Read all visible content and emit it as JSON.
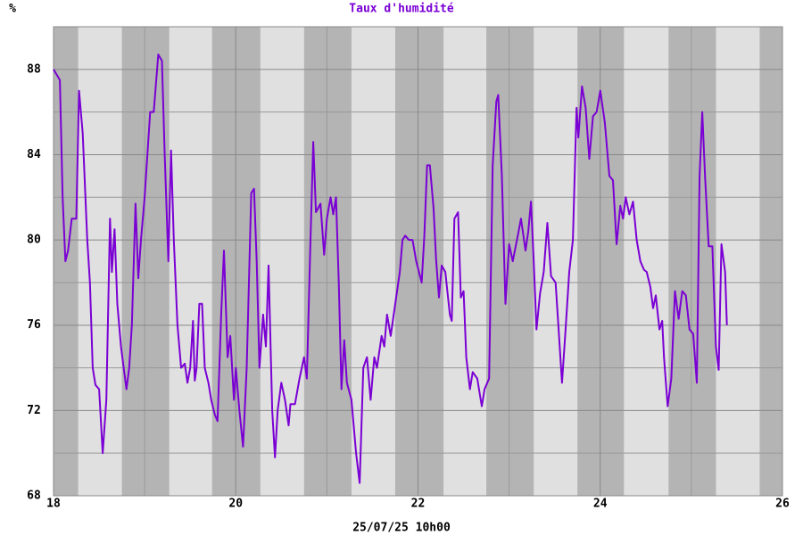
{
  "chart_data": {
    "type": "line",
    "title": "Taux d'humidité",
    "y_label": "%",
    "x_label": "25/07/25 10h00",
    "color": "#7a00d4",
    "xlim": [
      18,
      26
    ],
    "xticks": [
      18,
      20,
      22,
      24,
      26
    ],
    "minor_xticks": [
      19,
      21,
      23,
      25
    ],
    "ylim": [
      68,
      90
    ],
    "yticks": [
      68,
      72,
      76,
      80,
      84,
      88
    ],
    "minor_yticks": [
      70,
      74,
      78,
      82,
      86
    ],
    "grid": true,
    "night_bands": [
      [
        18,
        18.27
      ],
      [
        18.75,
        19.27
      ],
      [
        19.74,
        20.27
      ],
      [
        20.75,
        21.27
      ],
      [
        21.75,
        22.28
      ],
      [
        22.75,
        23.27
      ],
      [
        23.75,
        24.26
      ],
      [
        24.75,
        25.27
      ],
      [
        25.75,
        26
      ]
    ],
    "x": [
      18.0,
      18.07,
      18.1,
      18.13,
      18.16,
      18.2,
      18.25,
      18.28,
      18.32,
      18.37,
      18.4,
      18.43,
      18.46,
      18.5,
      18.54,
      18.58,
      18.62,
      18.64,
      18.67,
      18.7,
      18.74,
      18.8,
      18.83,
      18.86,
      18.9,
      18.93,
      18.96,
      19.0,
      19.06,
      19.1,
      19.15,
      19.19,
      19.22,
      19.26,
      19.29,
      19.32,
      19.36,
      19.4,
      19.44,
      19.47,
      19.5,
      19.53,
      19.55,
      19.57,
      19.6,
      19.63,
      19.66,
      19.7,
      19.73,
      19.77,
      19.8,
      19.84,
      19.87,
      19.91,
      19.94,
      19.98,
      20.0,
      20.04,
      20.08,
      20.12,
      20.17,
      20.2,
      20.23,
      20.26,
      20.3,
      20.33,
      20.36,
      20.4,
      20.43,
      20.46,
      20.5,
      20.54,
      20.58,
      20.6,
      20.65,
      20.7,
      20.75,
      20.78,
      20.82,
      20.85,
      20.88,
      20.93,
      20.97,
      21.0,
      21.04,
      21.07,
      21.1,
      21.13,
      21.16,
      21.19,
      21.22,
      21.27,
      21.32,
      21.36,
      21.4,
      21.44,
      21.48,
      21.52,
      21.55,
      21.6,
      21.63,
      21.66,
      21.7,
      21.75,
      21.8,
      21.83,
      21.86,
      21.9,
      21.94,
      21.98,
      22.04,
      22.07,
      22.1,
      22.13,
      22.17,
      22.2,
      22.23,
      22.26,
      22.3,
      22.35,
      22.37,
      22.4,
      22.44,
      22.47,
      22.5,
      22.53,
      22.57,
      22.6,
      22.65,
      22.7,
      22.73,
      22.78,
      22.82,
      22.86,
      22.88,
      22.92,
      22.96,
      23.0,
      23.04,
      23.1,
      23.13,
      23.18,
      23.21,
      23.24,
      23.27,
      23.3,
      23.34,
      23.38,
      23.42,
      23.46,
      23.51,
      23.54,
      23.58,
      23.62,
      23.66,
      23.7,
      23.74,
      23.76,
      23.8,
      23.84,
      23.88,
      23.92,
      23.96,
      24.0,
      24.05,
      24.1,
      24.14,
      24.18,
      24.22,
      24.25,
      24.28,
      24.32,
      24.36,
      24.4,
      24.44,
      24.48,
      24.51,
      24.55,
      24.58,
      24.61,
      24.65,
      24.68,
      24.7,
      24.74,
      24.78,
      24.82,
      24.86,
      24.9,
      24.94,
      24.98,
      25.02,
      25.06,
      25.09,
      25.12,
      25.15,
      25.19,
      25.23,
      25.27,
      25.3,
      25.33,
      25.37,
      25.39
    ],
    "values": [
      88,
      87.5,
      82,
      79,
      79.5,
      81,
      81,
      87,
      85,
      80,
      78,
      74,
      73.2,
      73,
      70,
      72.5,
      81,
      78.5,
      80.5,
      77,
      75,
      73,
      74,
      76,
      81.7,
      78.2,
      80,
      82,
      86,
      86,
      88.7,
      88.4,
      84,
      79,
      84.2,
      80,
      76,
      74,
      74.2,
      73.3,
      74,
      76.2,
      73.4,
      74,
      77,
      77,
      74,
      73.3,
      72.5,
      71.8,
      71.5,
      76.5,
      79.5,
      74.5,
      75.5,
      72.5,
      74,
      72,
      70.3,
      74,
      82.2,
      82.4,
      79,
      74,
      76.5,
      75,
      78.8,
      72,
      69.8,
      72,
      73.3,
      72.5,
      71.3,
      72.3,
      72.3,
      73.5,
      74.5,
      73.5,
      80,
      84.6,
      81.3,
      81.7,
      79.3,
      81,
      82,
      81.2,
      82,
      78,
      73,
      75.3,
      73.3,
      72.5,
      70,
      68.6,
      74,
      74.5,
      72.5,
      74.5,
      74,
      75.5,
      75,
      76.5,
      75.5,
      77,
      78.5,
      80,
      80.2,
      80,
      80,
      79,
      78,
      80.2,
      83.5,
      83.5,
      81.5,
      79,
      77.3,
      78.8,
      78.5,
      76.5,
      76.2,
      81,
      81.3,
      77.3,
      77.6,
      74.5,
      73,
      73.8,
      73.5,
      72.2,
      73,
      73.5,
      83.5,
      86.5,
      86.8,
      83,
      77,
      79.8,
      79,
      80.3,
      81,
      79.5,
      80.4,
      81.8,
      79,
      75.8,
      77.5,
      78.5,
      80.8,
      78.3,
      78,
      76,
      73.3,
      75.8,
      78.5,
      80,
      86.2,
      84.8,
      87.2,
      86.2,
      83.8,
      85.8,
      86,
      87,
      85.5,
      83,
      82.8,
      79.8,
      81.6,
      81,
      82,
      81.2,
      81.8,
      80,
      79,
      78.6,
      78.5,
      77.8,
      76.8,
      77.4,
      75.8,
      76.2,
      74.5,
      72.2,
      73.5,
      77.6,
      76.3,
      77.6,
      77.4,
      75.8,
      75.6,
      73.3,
      83,
      86,
      83,
      79.7,
      79.7,
      75,
      73.9,
      79.8,
      78.5,
      76
    ]
  }
}
